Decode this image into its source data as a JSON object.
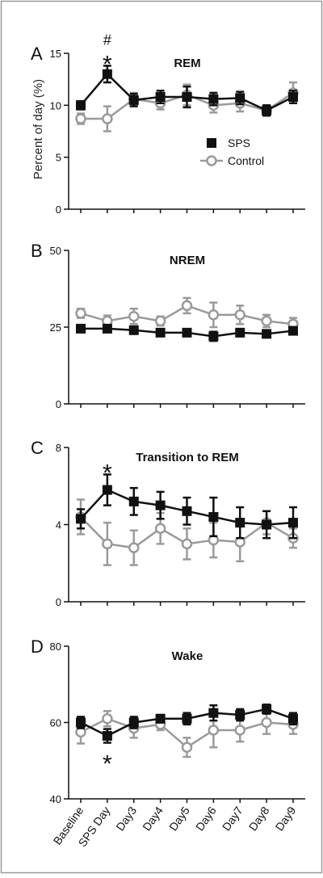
{
  "figure": {
    "ylabel": "Percent of day (%)",
    "x_categories": [
      "Baseline",
      "SPS Day",
      "Day3",
      "Day4",
      "Day5",
      "Day6",
      "Day7",
      "Day8",
      "Day9"
    ],
    "legend": {
      "placement": "right",
      "entries": [
        "SPS",
        "Control"
      ]
    }
  },
  "chart_data": [
    {
      "type": "line",
      "panel_letter": "A",
      "title": "REM",
      "ylim": [
        0,
        15
      ],
      "yticks": [
        0,
        5,
        10,
        15
      ],
      "categories": [
        "Baseline",
        "SPS Day",
        "Day3",
        "Day4",
        "Day5",
        "Day6",
        "Day7",
        "Day8",
        "Day9"
      ],
      "series": [
        {
          "name": "SPS",
          "color": "#111111",
          "marker": "square",
          "values": [
            10.0,
            13.0,
            10.5,
            10.8,
            10.8,
            10.6,
            10.7,
            9.5,
            10.8
          ],
          "errors": [
            0.4,
            0.8,
            0.6,
            0.6,
            1.0,
            0.6,
            0.6,
            0.5,
            0.6
          ]
        },
        {
          "name": "Control",
          "color": "#9a9a9a",
          "marker": "circle",
          "values": [
            8.7,
            8.7,
            10.6,
            10.2,
            11.0,
            10.0,
            10.2,
            9.5,
            11.2
          ],
          "errors": [
            0.5,
            1.2,
            0.6,
            0.6,
            1.0,
            0.7,
            0.8,
            0.5,
            1.0
          ]
        }
      ],
      "annotations": [
        {
          "text": "#",
          "category": "SPS Day",
          "level": 2
        },
        {
          "text": "*",
          "category": "SPS Day",
          "level": 1
        }
      ]
    },
    {
      "type": "line",
      "panel_letter": "B",
      "title": "NREM",
      "ylim": [
        0,
        50
      ],
      "yticks": [
        0,
        25,
        50
      ],
      "categories": [
        "Baseline",
        "SPS Day",
        "Day3",
        "Day4",
        "Day5",
        "Day6",
        "Day7",
        "Day8",
        "Day9"
      ],
      "series": [
        {
          "name": "SPS",
          "color": "#111111",
          "marker": "square",
          "values": [
            24.5,
            24.5,
            24.0,
            23.2,
            23.2,
            22.0,
            23.2,
            22.8,
            23.8
          ],
          "errors": [
            0.8,
            0.8,
            1.0,
            1.0,
            0.8,
            1.5,
            1.2,
            1.0,
            1.2
          ]
        },
        {
          "name": "Control",
          "color": "#9a9a9a",
          "marker": "circle",
          "values": [
            29.5,
            27.0,
            28.5,
            27.0,
            32.0,
            29.0,
            29.0,
            27.0,
            26.0
          ],
          "errors": [
            1.5,
            1.8,
            2.5,
            1.5,
            2.5,
            4.0,
            3.0,
            2.0,
            2.0
          ]
        }
      ],
      "annotations": []
    },
    {
      "type": "line",
      "panel_letter": "C",
      "title": "Transition to REM",
      "ylim": [
        0,
        8
      ],
      "yticks": [
        0,
        4,
        8
      ],
      "categories": [
        "Baseline",
        "SPS Day",
        "Day3",
        "Day4",
        "Day5",
        "Day6",
        "Day7",
        "Day8",
        "Day9"
      ],
      "series": [
        {
          "name": "SPS",
          "color": "#111111",
          "marker": "square",
          "values": [
            4.3,
            5.8,
            5.2,
            5.0,
            4.7,
            4.4,
            4.1,
            4.0,
            4.1
          ],
          "errors": [
            0.5,
            0.8,
            0.7,
            0.7,
            0.7,
            1.0,
            0.8,
            0.7,
            0.8
          ]
        },
        {
          "name": "Control",
          "color": "#9a9a9a",
          "marker": "circle",
          "values": [
            4.4,
            3.0,
            2.8,
            3.8,
            3.0,
            3.2,
            3.1,
            4.1,
            3.3
          ],
          "errors": [
            0.9,
            1.1,
            0.9,
            0.8,
            0.8,
            0.9,
            1.0,
            0.6,
            0.5
          ]
        }
      ],
      "annotations": [
        {
          "text": "*",
          "category": "SPS Day",
          "level": 1
        }
      ]
    },
    {
      "type": "line",
      "panel_letter": "D",
      "title": "Wake",
      "ylim": [
        40,
        80
      ],
      "yticks": [
        40,
        60,
        80
      ],
      "categories": [
        "Baseline",
        "SPS Day",
        "Day3",
        "Day4",
        "Day5",
        "Day6",
        "Day7",
        "Day8",
        "Day9"
      ],
      "series": [
        {
          "name": "SPS",
          "color": "#111111",
          "marker": "square",
          "values": [
            60.0,
            56.5,
            60.0,
            61.0,
            61.0,
            62.5,
            62.0,
            63.5,
            61.0
          ],
          "errors": [
            1.5,
            1.8,
            1.5,
            1.0,
            1.5,
            2.0,
            1.5,
            1.2,
            1.5
          ]
        },
        {
          "name": "Control",
          "color": "#9a9a9a",
          "marker": "circle",
          "values": [
            57.5,
            61.0,
            58.5,
            59.5,
            53.5,
            58.0,
            58.0,
            60.0,
            59.5
          ],
          "errors": [
            3.0,
            2.0,
            2.5,
            1.5,
            2.5,
            4.5,
            3.0,
            3.0,
            2.5
          ]
        }
      ],
      "annotations": [
        {
          "text": "*",
          "category": "SPS Day",
          "level": -1
        }
      ]
    }
  ]
}
